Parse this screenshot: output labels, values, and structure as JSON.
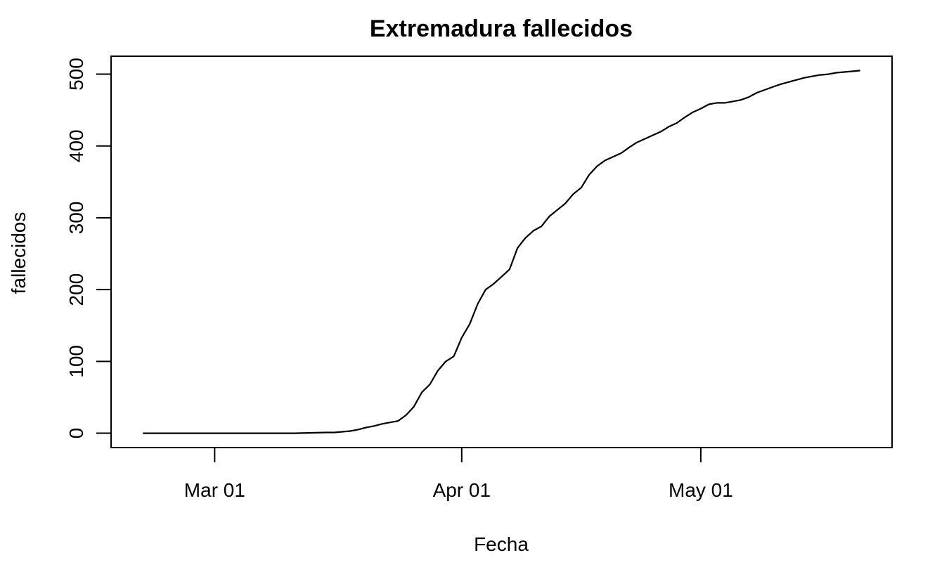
{
  "chart_data": {
    "type": "line",
    "title": "Extremadura fallecidos",
    "xlabel": "Fecha",
    "ylabel": "fallecidos",
    "x_ticks": [
      {
        "date": "2020-03-01",
        "label": "Mar 01"
      },
      {
        "date": "2020-04-01",
        "label": "Apr 01"
      },
      {
        "date": "2020-05-01",
        "label": "May 01"
      }
    ],
    "y_ticks": [
      0,
      100,
      200,
      300,
      400,
      500
    ],
    "xlim": [
      "2020-02-17",
      "2020-05-25"
    ],
    "ylim": [
      -20,
      525
    ],
    "grid": false,
    "legend": "none",
    "series": [
      {
        "x": [
          "2020-02-21",
          "2020-02-26",
          "2020-03-01",
          "2020-03-06",
          "2020-03-11",
          "2020-03-15",
          "2020-03-16",
          "2020-03-17",
          "2020-03-18",
          "2020-03-19",
          "2020-03-20",
          "2020-03-21",
          "2020-03-22",
          "2020-03-23",
          "2020-03-24",
          "2020-03-25",
          "2020-03-26",
          "2020-03-27",
          "2020-03-28",
          "2020-03-29",
          "2020-03-30",
          "2020-03-31",
          "2020-04-01",
          "2020-04-02",
          "2020-04-03",
          "2020-04-04",
          "2020-04-05",
          "2020-04-06",
          "2020-04-07",
          "2020-04-08",
          "2020-04-09",
          "2020-04-10",
          "2020-04-11",
          "2020-04-12",
          "2020-04-13",
          "2020-04-14",
          "2020-04-15",
          "2020-04-16",
          "2020-04-17",
          "2020-04-18",
          "2020-04-19",
          "2020-04-20",
          "2020-04-21",
          "2020-04-22",
          "2020-04-23",
          "2020-04-24",
          "2020-04-25",
          "2020-04-26",
          "2020-04-27",
          "2020-04-28",
          "2020-04-29",
          "2020-04-30",
          "2020-05-01",
          "2020-05-02",
          "2020-05-03",
          "2020-05-04",
          "2020-05-05",
          "2020-05-06",
          "2020-05-07",
          "2020-05-08",
          "2020-05-09",
          "2020-05-10",
          "2020-05-11",
          "2020-05-12",
          "2020-05-13",
          "2020-05-14",
          "2020-05-15",
          "2020-05-16",
          "2020-05-17",
          "2020-05-18",
          "2020-05-19",
          "2020-05-20",
          "2020-05-21"
        ],
        "y": [
          0,
          0,
          0,
          0,
          0,
          1,
          1,
          2,
          3,
          5,
          8,
          10,
          13,
          15,
          17,
          25,
          37,
          57,
          68,
          87,
          100,
          107,
          133,
          152,
          180,
          200,
          208,
          218,
          228,
          258,
          272,
          282,
          288,
          302,
          311,
          320,
          333,
          342,
          360,
          372,
          380,
          385,
          390,
          398,
          405,
          410,
          415,
          420,
          427,
          432,
          440,
          447,
          452,
          458,
          460,
          460,
          462,
          464,
          468,
          474,
          478,
          482,
          486,
          489,
          492,
          495,
          497,
          499,
          500,
          502,
          503,
          504,
          505
        ]
      }
    ]
  }
}
